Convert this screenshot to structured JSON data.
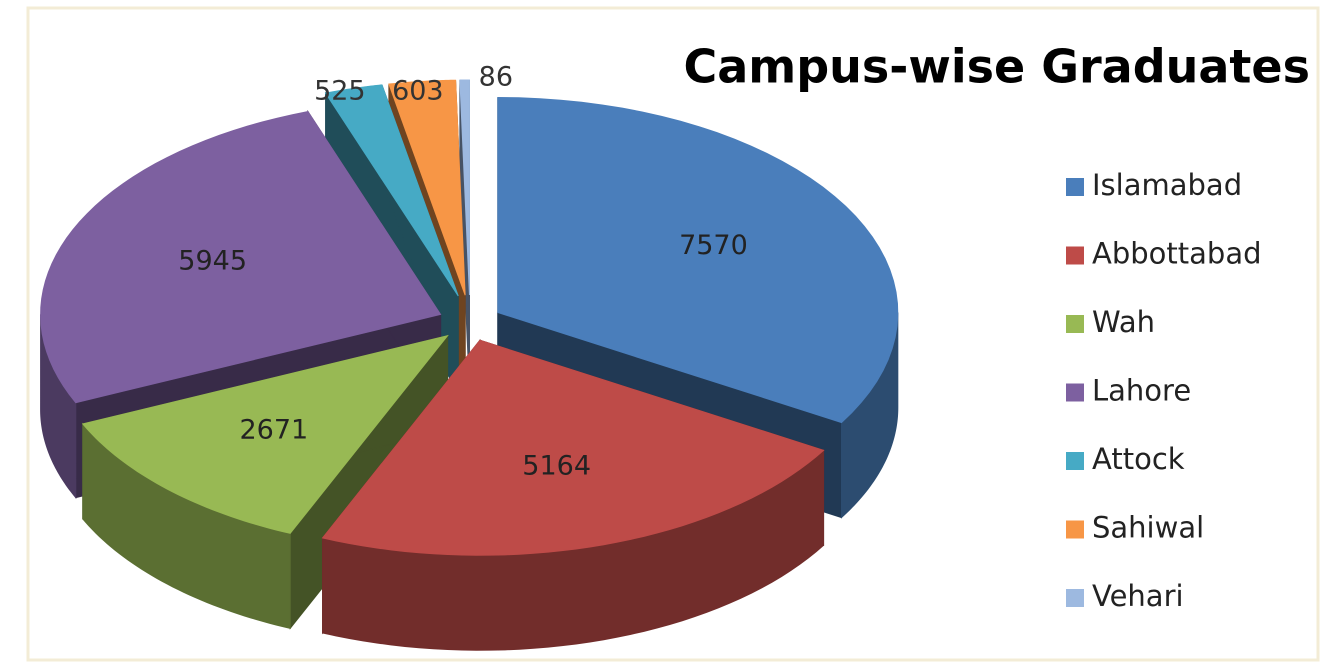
{
  "chart_data": {
    "type": "pie3d",
    "title": "Campus-wise Graduates",
    "categories": [
      "Islamabad",
      "Abbottabad",
      "Wah",
      "Lahore",
      "Attock",
      "Sahiwal",
      "Vehari"
    ],
    "values": [
      7570,
      5164,
      2671,
      5945,
      525,
      603,
      86
    ],
    "colors": [
      "#4a7ebb",
      "#be4b48",
      "#98b954",
      "#7d60a0",
      "#46aac5",
      "#f79646",
      "#9db9e0"
    ],
    "legend": "right"
  }
}
